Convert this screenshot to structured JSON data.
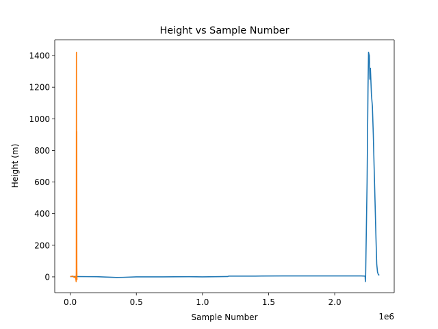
{
  "chart_data": {
    "type": "line",
    "title": "Height vs Sample Number",
    "xlabel": "Sample Number",
    "ylabel": "Height (m)",
    "x_offset_text": "1e6",
    "xlim": [
      -0.117,
      2.45
    ],
    "ylim": [
      -100,
      1500
    ],
    "x_ticks": [
      {
        "value": 0.0,
        "label": "0.0"
      },
      {
        "value": 0.5,
        "label": "0.5"
      },
      {
        "value": 1.0,
        "label": "1.0"
      },
      {
        "value": 1.5,
        "label": "1.5"
      },
      {
        "value": 2.0,
        "label": "2.0"
      }
    ],
    "y_ticks": [
      {
        "value": 0,
        "label": "0"
      },
      {
        "value": 200,
        "label": "200"
      },
      {
        "value": 400,
        "label": "400"
      },
      {
        "value": 600,
        "label": "600"
      },
      {
        "value": 800,
        "label": "800"
      },
      {
        "value": 1000,
        "label": "1000"
      },
      {
        "value": 1200,
        "label": "1200"
      },
      {
        "value": 1400,
        "label": "1400"
      }
    ],
    "grid": false,
    "series": [
      {
        "color": "#1f77b4",
        "points": [
          [
            0.0,
            2
          ],
          [
            0.2,
            1
          ],
          [
            0.3,
            -2
          ],
          [
            0.35,
            -4
          ],
          [
            0.4,
            -3
          ],
          [
            0.5,
            0
          ],
          [
            0.7,
            0
          ],
          [
            0.9,
            1
          ],
          [
            1.0,
            0
          ],
          [
            1.1,
            1
          ],
          [
            1.19,
            2
          ],
          [
            1.2,
            5
          ],
          [
            1.4,
            5
          ],
          [
            1.6,
            6
          ],
          [
            1.8,
            6
          ],
          [
            2.0,
            6
          ],
          [
            2.2,
            6
          ],
          [
            2.23,
            5
          ],
          [
            2.232,
            -30
          ],
          [
            2.234,
            8
          ],
          [
            2.245,
            600
          ],
          [
            2.252,
            1200
          ],
          [
            2.256,
            1420
          ],
          [
            2.262,
            1400
          ],
          [
            2.266,
            1250
          ],
          [
            2.27,
            1320
          ],
          [
            2.278,
            1150
          ],
          [
            2.285,
            1080
          ],
          [
            2.292,
            900
          ],
          [
            2.298,
            700
          ],
          [
            2.305,
            480
          ],
          [
            2.312,
            250
          ],
          [
            2.318,
            80
          ],
          [
            2.324,
            30
          ],
          [
            2.33,
            15
          ],
          [
            2.337,
            10
          ]
        ]
      },
      {
        "color": "#ff7f0e",
        "points": [
          [
            0.0,
            2
          ],
          [
            0.02,
            5
          ],
          [
            0.03,
            -4
          ],
          [
            0.04,
            3
          ],
          [
            0.045,
            -30
          ],
          [
            0.046,
            40
          ],
          [
            0.047,
            1420
          ],
          [
            0.048,
            200
          ],
          [
            0.049,
            920
          ],
          [
            0.05,
            60
          ],
          [
            0.051,
            -20
          ]
        ]
      }
    ]
  }
}
